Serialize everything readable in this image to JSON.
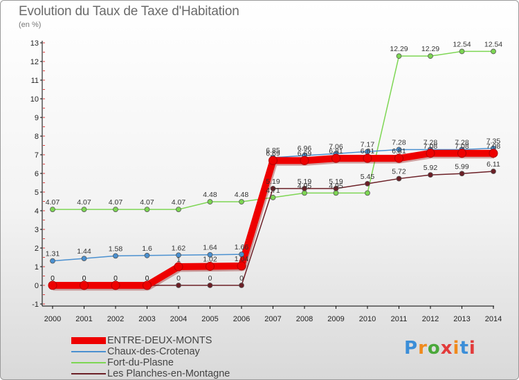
{
  "colors": {
    "entre_deux_monts": "#ee0000",
    "chaux_des_crotenay": "#4a90d0",
    "fort_du_plasne": "#7dd653",
    "les_planches": "#6b1f26"
  },
  "chart_data": {
    "type": "line",
    "title": "Evolution du Taux de Taxe d'Habitation",
    "unit": "(en %)",
    "x": [
      "2000",
      "2001",
      "2002",
      "2003",
      "2004",
      "2005",
      "2006",
      "2007",
      "2008",
      "2009",
      "2010",
      "2011",
      "2012",
      "2013",
      "2014"
    ],
    "y_ticks": [
      "-1",
      "0",
      "1",
      "2",
      "3",
      "4",
      "5",
      "6",
      "7",
      "8",
      "9",
      "10",
      "11",
      "12",
      "13"
    ],
    "ylim": [
      -1,
      13
    ],
    "grid": false,
    "legend_position": "bottom-left",
    "series": [
      {
        "name": "Fort-du-Plasne",
        "color": "#7dd653",
        "values": [
          4.07,
          4.07,
          4.07,
          4.07,
          4.07,
          4.48,
          4.48,
          4.71,
          4.95,
          4.95,
          4.95,
          12.29,
          12.29,
          12.54,
          12.54
        ],
        "labels": [
          "4.07",
          "4.07",
          "4.07",
          "4.07",
          "4.07",
          "4.48",
          "4.48",
          "4.71",
          "4.95",
          "4.95",
          "",
          "12.29",
          "12.29",
          "12.54",
          "12.54"
        ]
      },
      {
        "name": "Chaux-des-Crotenay",
        "color": "#4a90d0",
        "values": [
          1.31,
          1.44,
          1.58,
          1.6,
          1.62,
          1.64,
          1.66,
          6.85,
          6.96,
          7.06,
          7.17,
          7.28,
          7.28,
          7.28,
          7.35
        ],
        "labels": [
          "1.31",
          "1.44",
          "1.58",
          "1.6",
          "1.62",
          "1.64",
          "1.66",
          "6.85",
          "6.96",
          "7.06",
          "7.17",
          "7.28",
          "7.28",
          "7.28",
          "7.35"
        ]
      },
      {
        "name": "Les Planches-en-Montagne",
        "color": "#6b1f26",
        "values": [
          0,
          0,
          0,
          0,
          0,
          0,
          0,
          5.19,
          5.19,
          5.19,
          5.45,
          5.72,
          5.92,
          5.99,
          6.11
        ],
        "labels": [
          "0",
          "0",
          "0",
          "0",
          "0",
          "0",
          "0",
          "5.19",
          "5.19",
          "5.19",
          "5.45",
          "5.72",
          "5.92",
          "5.99",
          "6.11"
        ]
      },
      {
        "name": "ENTRE-DEUX-MONTS",
        "color": "#ee0000",
        "values": [
          0,
          0,
          0,
          0,
          1,
          1.02,
          1.04,
          6.69,
          6.69,
          6.81,
          6.81,
          6.81,
          7.08,
          7.08,
          7.08
        ],
        "labels": [
          "0",
          "0",
          "0",
          "0",
          "1",
          "1.02",
          "1.04",
          "6.69",
          "6.69",
          "6.81",
          "6.81",
          "6.81",
          "7.08",
          "7.08",
          "7.08"
        ]
      }
    ]
  },
  "legend": [
    {
      "label": "ENTRE-DEUX-MONTS",
      "color": "#ee0000"
    },
    {
      "label": "Chaux-des-Crotenay",
      "color": "#4a90d0"
    },
    {
      "label": "Fort-du-Plasne",
      "color": "#7dd653"
    },
    {
      "label": "Les Planches-en-Montagne",
      "color": "#6b1f26"
    }
  ],
  "logo": {
    "text": "Proxiti",
    "letter_colors": [
      "#3b8ed8",
      "#f08a1c",
      "#4aa83a",
      "#e23b3b",
      "#f08a1c",
      "#3b8ed8",
      "#e23b3b"
    ]
  }
}
